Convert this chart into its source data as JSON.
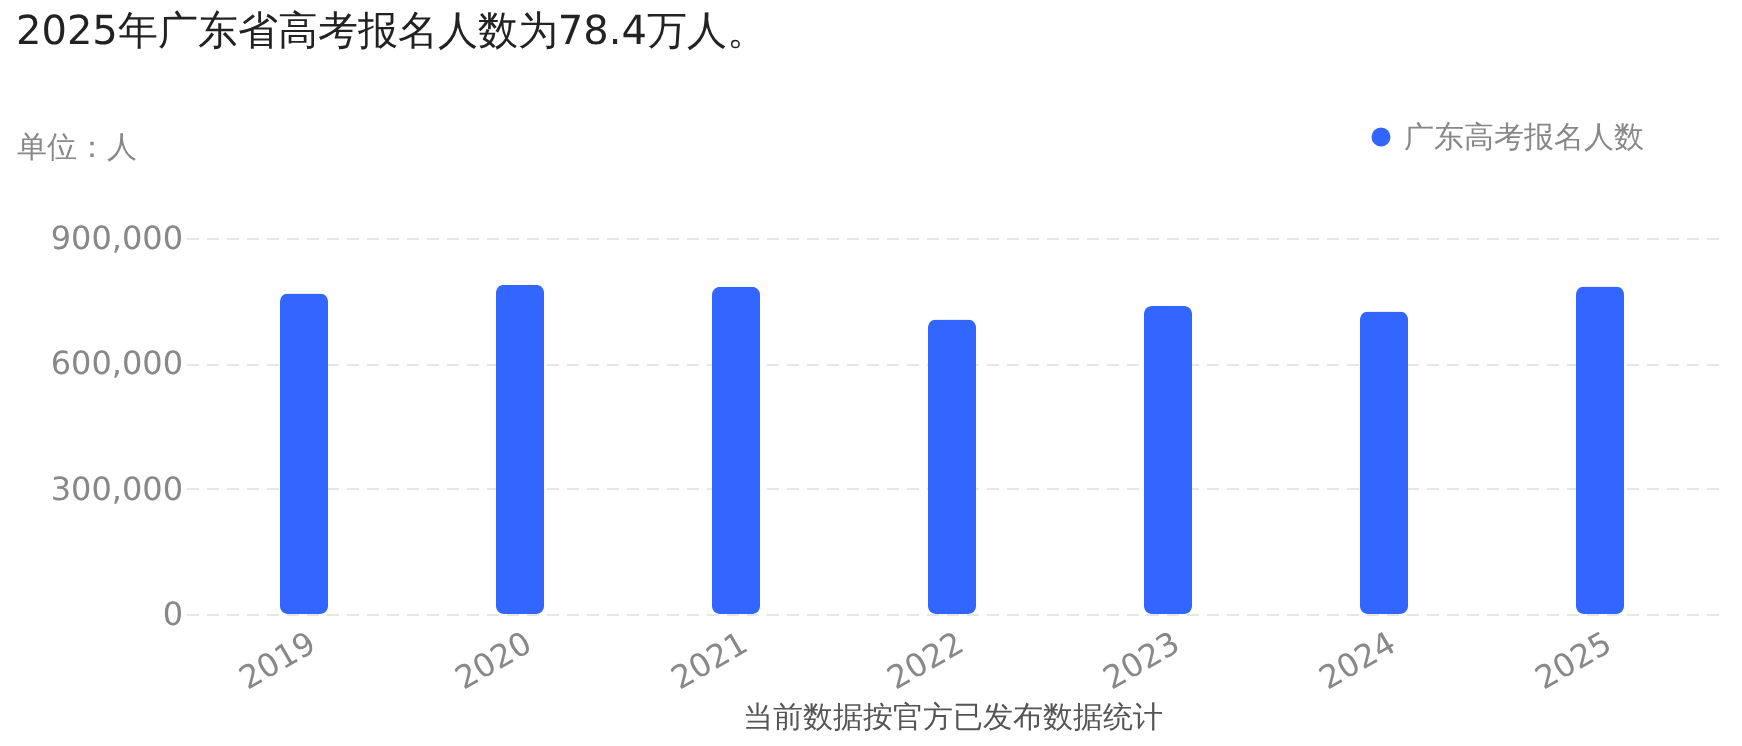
{
  "chart_data": {
    "type": "bar",
    "title": "2025年广东省高考报名人数为78.4万人。",
    "ylabel": "单位：人",
    "xlabel": "当前数据按官方已发布数据统计",
    "categories": [
      "2019",
      "2020",
      "2021",
      "2022",
      "2023",
      "2024",
      "2025"
    ],
    "series": [
      {
        "name": "广东高考报名人数",
        "color": "#3366ff",
        "values": [
          767000,
          788000,
          783000,
          705000,
          737000,
          724000,
          784000
        ]
      }
    ],
    "ylim": [
      0,
      900000
    ],
    "yticks": [
      0,
      {
        "value": 300000,
        "label": "300,000"
      },
      {
        "value": 600000,
        "label": "600,000"
      },
      {
        "value": 900000,
        "label": "900,000"
      }
    ],
    "grid": "y",
    "legend": "top right"
  }
}
